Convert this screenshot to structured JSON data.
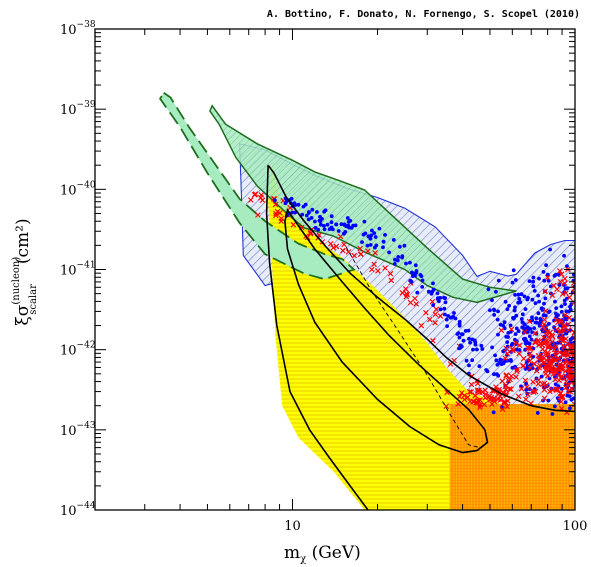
{
  "credit": "A. Bottino, F. Donato, N. Fornengo, S. Scopel  (2010)",
  "chart_data": {
    "type": "scatter",
    "xlabel": "m_χ (GeV)",
    "ylabel_symbol": "ξσ",
    "ylabel_superscript": "(nucleon)",
    "ylabel_subscript": "scalar",
    "ylabel_unit": "(cm²)",
    "xscale": "log",
    "yscale": "log",
    "xlim": [
      2,
      100
    ],
    "ylim": [
      1e-44,
      1e-38
    ],
    "x_tick_labels": [
      {
        "value": 10,
        "label": "10"
      },
      {
        "value": 100,
        "label": "100"
      }
    ],
    "y_tick_labels": [
      {
        "value": 1e-38,
        "base": "10",
        "exp": "−38"
      },
      {
        "value": 1e-39,
        "base": "10",
        "exp": "−39"
      },
      {
        "value": 1e-40,
        "base": "10",
        "exp": "−40"
      },
      {
        "value": 1e-41,
        "base": "10",
        "exp": "−41"
      },
      {
        "value": 1e-42,
        "base": "10",
        "exp": "−42"
      },
      {
        "value": 1e-43,
        "base": "10",
        "exp": "−43"
      },
      {
        "value": 1e-44,
        "base": "10",
        "exp": "−44"
      }
    ],
    "colors": {
      "green_fill": "#9fe8b8",
      "green_edge": "#1f6e1f",
      "blue_edge": "#2233dd",
      "blue_hatch": "#7a8fd0",
      "yellow": "#ffff00",
      "yellow_hatch": "#e6d200",
      "orange": "#ff8c00",
      "red": "#ff0000",
      "blue_points": "#0000ff",
      "black": "#000000"
    },
    "regions": [
      {
        "name": "green dashed band",
        "style": "dashed",
        "points": [
          [
            3.5,
            1.6e-39
          ],
          [
            3.7,
            1.4e-39
          ],
          [
            4.3,
            6e-40
          ],
          [
            5.3,
            2.1e-40
          ],
          [
            6.5,
            7.6e-41
          ],
          [
            8.0,
            4e-41
          ],
          [
            10.5,
            2.1e-41
          ],
          [
            13.0,
            1.55e-41
          ],
          [
            15.0,
            1.35e-41
          ],
          [
            16.5,
            1e-41
          ],
          [
            13.0,
            7.6e-42
          ],
          [
            11.0,
            8.9e-42
          ],
          [
            8.0,
            1.55e-41
          ],
          [
            6.5,
            3.8e-41
          ],
          [
            5.0,
            1.6e-40
          ],
          [
            4.0,
            6e-40
          ],
          [
            3.4,
            1.35e-39
          ]
        ]
      },
      {
        "name": "green band",
        "style": "solid",
        "points": [
          [
            5.2,
            1.1e-39
          ],
          [
            5.8,
            6.5e-40
          ],
          [
            7.5,
            3.7e-40
          ],
          [
            10.0,
            2.3e-40
          ],
          [
            12.0,
            1.65e-40
          ],
          [
            14.5,
            1.3e-40
          ],
          [
            18.0,
            9.8e-41
          ],
          [
            22.0,
            5.1e-41
          ],
          [
            30.0,
            1.85e-41
          ],
          [
            40.0,
            7.6e-42
          ],
          [
            50.0,
            6e-42
          ],
          [
            62.0,
            5.4e-42
          ],
          [
            45.0,
            3.9e-42
          ],
          [
            37.0,
            4.5e-42
          ],
          [
            30.0,
            6.3e-42
          ],
          [
            25.0,
            1e-41
          ],
          [
            18.0,
            1.65e-41
          ],
          [
            14.0,
            2.6e-41
          ],
          [
            11.0,
            3.3e-41
          ],
          [
            9.5,
            5.1e-41
          ],
          [
            7.5,
            1.1e-40
          ],
          [
            6.3,
            2.5e-40
          ],
          [
            5.5,
            6.5e-40
          ],
          [
            5.1,
            9.5e-40
          ]
        ]
      },
      {
        "name": "blue hatched region",
        "style": "hatched",
        "points": [
          [
            6.5,
            3.7e-40
          ],
          [
            8.0,
            3.1e-40
          ],
          [
            10.0,
            2.05e-40
          ],
          [
            12.0,
            1.5e-40
          ],
          [
            14.0,
            1.2e-40
          ],
          [
            16.0,
            1e-40
          ],
          [
            20.0,
            7.9e-41
          ],
          [
            25.0,
            5.8e-41
          ],
          [
            32.0,
            3.4e-41
          ],
          [
            40.0,
            1.5e-41
          ],
          [
            45.0,
            8.2e-42
          ],
          [
            50.0,
            9.5e-42
          ],
          [
            58.0,
            8.3e-42
          ],
          [
            62.0,
            8.7e-42
          ],
          [
            72.0,
            1.6e-41
          ],
          [
            82.0,
            2.05e-41
          ],
          [
            92.0,
            2.3e-41
          ],
          [
            100.0,
            2.3e-41
          ],
          [
            100.0,
            1e-44
          ],
          [
            35.0,
            1e-44
          ],
          [
            35.0,
            1.5e-43
          ],
          [
            32.0,
            3e-43
          ],
          [
            25.0,
            5.5e-43
          ],
          [
            18.0,
            1.05e-42
          ],
          [
            14.0,
            2e-42
          ],
          [
            11.0,
            3.8e-42
          ],
          [
            9.5,
            7.5e-42
          ],
          [
            8.0,
            6.3e-42
          ],
          [
            6.7,
            1.5e-41
          ],
          [
            6.6,
            8e-41
          ]
        ]
      },
      {
        "name": "yellow region",
        "style": "filled",
        "points": [
          [
            8.5,
            2e-40
          ],
          [
            9.0,
            8e-41
          ],
          [
            10.0,
            5e-41
          ],
          [
            11.0,
            3.5e-41
          ],
          [
            13.0,
            2e-41
          ],
          [
            15.0,
            1.4e-41
          ],
          [
            20.0,
            5.5e-42
          ],
          [
            25.0,
            2.5e-42
          ],
          [
            30.0,
            1.2e-42
          ],
          [
            35.0,
            6e-43
          ],
          [
            42.0,
            3e-43
          ],
          [
            55.0,
            2.1e-43
          ],
          [
            70.0,
            1.85e-43
          ],
          [
            80.0,
            1.75e-43
          ],
          [
            100.0,
            1.7e-43
          ],
          [
            100.0,
            1e-44
          ],
          [
            18.0,
            1e-44
          ],
          [
            14.0,
            3e-44
          ],
          [
            10.5,
            8e-44
          ],
          [
            9.2,
            2e-43
          ],
          [
            8.7,
            1.5e-42
          ],
          [
            8.4,
            2e-41
          ],
          [
            8.2,
            7e-41
          ]
        ]
      },
      {
        "name": "black contour outer",
        "style": "line",
        "points": [
          [
            8.2,
            2e-40
          ],
          [
            8.6,
            1.6e-40
          ],
          [
            9.5,
            8e-41
          ],
          [
            11.0,
            4e-41
          ],
          [
            13.0,
            2e-41
          ],
          [
            16.0,
            9e-42
          ],
          [
            20.0,
            4.5e-42
          ],
          [
            25.0,
            2.4e-42
          ],
          [
            30.0,
            1.35e-42
          ],
          [
            35.0,
            8e-43
          ],
          [
            42.0,
            4.8e-43
          ],
          [
            55.0,
            2.8e-43
          ],
          [
            70.0,
            2e-43
          ],
          [
            85.0,
            1.75e-43
          ],
          [
            100.0,
            1.7e-43
          ]
        ]
      },
      {
        "name": "black contour outer lower",
        "style": "line",
        "points": [
          [
            8.2,
            2e-40
          ],
          [
            8.1,
            5e-41
          ],
          [
            8.3,
            1.2e-41
          ],
          [
            8.8,
            2e-42
          ],
          [
            9.8,
            3e-43
          ],
          [
            11.5,
            1e-43
          ],
          [
            13.5,
            4.5e-44
          ],
          [
            16.0,
            2e-44
          ],
          [
            18.5,
            1e-44
          ]
        ]
      },
      {
        "name": "black contour inner",
        "style": "line",
        "points": [
          [
            9.6,
            5.5e-41
          ],
          [
            10.5,
            3.5e-41
          ],
          [
            12.0,
            1.8e-41
          ],
          [
            15.0,
            7e-42
          ],
          [
            18.0,
            3.3e-42
          ],
          [
            22.0,
            1.5e-42
          ],
          [
            28.0,
            6.5e-43
          ],
          [
            35.0,
            3.2e-43
          ],
          [
            42.0,
            1.8e-43
          ],
          [
            48.0,
            1e-43
          ],
          [
            49.0,
            7e-44
          ],
          [
            45.0,
            5.5e-44
          ],
          [
            40.0,
            5.2e-44
          ],
          [
            33.0,
            6.5e-44
          ],
          [
            26.0,
            1.1e-43
          ],
          [
            20.0,
            2.4e-43
          ],
          [
            15.0,
            7e-43
          ],
          [
            12.0,
            2.2e-42
          ],
          [
            10.5,
            6.5e-42
          ],
          [
            9.6,
            1.8e-41
          ],
          [
            9.4,
            4e-41
          ]
        ]
      },
      {
        "name": "thin dashed curve",
        "style": "dashed-thin",
        "points": [
          [
            15.5,
            1.9e-41
          ],
          [
            19.0,
            5.5e-42
          ],
          [
            24.0,
            1.6e-42
          ],
          [
            30.0,
            4.8e-43
          ],
          [
            36.0,
            1.6e-43
          ],
          [
            42.0,
            6.5e-44
          ],
          [
            46.0,
            6e-44
          ]
        ]
      }
    ],
    "point_groups": [
      {
        "name": "red crosses branch",
        "marker": "x",
        "color": "red",
        "seed": 11,
        "count": 70,
        "spine": [
          [
            7.3,
            7.5e-41
          ],
          [
            9.0,
            5.4e-41
          ],
          [
            12.0,
            2.6e-41
          ],
          [
            16.0,
            1.6e-41
          ],
          [
            20.0,
            1.2e-41
          ],
          [
            25.0,
            6.5e-42
          ],
          [
            30.0,
            2.8e-42
          ],
          [
            35.0,
            1.3e-42
          ],
          [
            40.0,
            7e-43
          ]
        ],
        "spread": 0.12
      },
      {
        "name": "blue dots branch",
        "marker": "dot",
        "color": "blue_points",
        "seed": 23,
        "count": 160,
        "spine": [
          [
            9.0,
            7.5e-41
          ],
          [
            11.5,
            4.8e-41
          ],
          [
            14.0,
            3.6e-41
          ],
          [
            17.0,
            3.2e-41
          ],
          [
            20.0,
            2.3e-41
          ],
          [
            25.0,
            1.35e-41
          ],
          [
            30.0,
            6.3e-42
          ],
          [
            35.0,
            3.3e-42
          ],
          [
            40.0,
            1.6e-42
          ],
          [
            45.0,
            6.5e-43
          ]
        ],
        "spread": 0.11
      },
      {
        "name": "blue dots large-mass cloud",
        "marker": "dot",
        "color": "blue_points",
        "seed": 37,
        "count": 360,
        "xrange": [
          45,
          100
        ],
        "yrange": [
          8e-44,
          2.2e-41
        ]
      },
      {
        "name": "red crosses large-mass cloud",
        "marker": "x",
        "color": "red",
        "seed": 51,
        "count": 230,
        "xrange": [
          52,
          100
        ],
        "yrange": [
          1.3e-43,
          4e-42
        ]
      },
      {
        "name": "red crosses near ridge",
        "marker": "x",
        "color": "red",
        "seed": 67,
        "count": 70,
        "xrange": [
          35,
          58
        ],
        "yrange": [
          1.4e-43,
          5e-43
        ]
      },
      {
        "name": "red crosses upper scatter",
        "marker": "x",
        "color": "red",
        "seed": 71,
        "count": 18,
        "xrange": [
          70,
          100
        ],
        "yrange": [
          3e-42,
          1.4e-41
        ]
      }
    ],
    "bands": [
      {
        "name": "orange block",
        "color": "orange",
        "x": [
          36,
          100
        ],
        "y": [
          1e-44,
          2.1e-43
        ]
      }
    ]
  }
}
